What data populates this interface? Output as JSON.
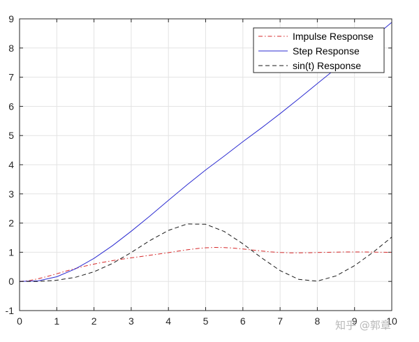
{
  "chart_data": {
    "type": "line",
    "xlim": [
      0,
      10
    ],
    "ylim": [
      -1,
      9
    ],
    "x_ticks": [
      "0",
      "1",
      "2",
      "3",
      "4",
      "5",
      "6",
      "7",
      "8",
      "9",
      "10"
    ],
    "y_ticks": [
      "-1",
      "0",
      "1",
      "2",
      "3",
      "4",
      "5",
      "6",
      "7",
      "8",
      "9"
    ],
    "grid": true,
    "legend_position": "top-right",
    "series": [
      {
        "name": "Impulse Response",
        "color": "#d62728",
        "style": "dash-dot",
        "x": [
          0,
          0.25,
          0.5,
          0.75,
          1,
          1.25,
          1.5,
          1.75,
          2,
          2.25,
          2.5,
          2.75,
          3,
          3.25,
          3.5,
          3.75,
          4,
          4.25,
          4.5,
          4.75,
          5,
          5.25,
          5.5,
          5.75,
          6,
          6.25,
          6.5,
          6.75,
          7,
          7.25,
          7.5,
          7.75,
          8,
          8.25,
          8.5,
          8.75,
          9,
          9.25,
          9.5,
          9.75,
          10
        ],
        "y": [
          0,
          0.026,
          0.09,
          0.173,
          0.264,
          0.355,
          0.442,
          0.523,
          0.594,
          0.657,
          0.713,
          0.762,
          0.808,
          0.851,
          0.894,
          0.939,
          0.986,
          1.036,
          1.083,
          1.124,
          1.152,
          1.165,
          1.161,
          1.142,
          1.113,
          1.078,
          1.043,
          1.013,
          0.993,
          0.982,
          0.98,
          0.983,
          0.99,
          0.998,
          1.005,
          1.009,
          1.01,
          1.009,
          1.005,
          1.001,
          0.998
        ]
      },
      {
        "name": "Step Response",
        "color": "#2b2bd1",
        "style": "solid",
        "x": [
          0,
          0.5,
          1,
          1.5,
          2,
          2.5,
          3,
          3.5,
          4,
          4.5,
          5,
          5.5,
          6,
          6.5,
          7,
          7.5,
          8,
          8.5,
          9,
          9.5,
          10
        ],
        "y": [
          0,
          0.02,
          0.16,
          0.43,
          0.79,
          1.23,
          1.72,
          2.24,
          2.78,
          3.31,
          3.82,
          4.3,
          4.79,
          5.26,
          5.75,
          6.26,
          6.78,
          7.3,
          7.82,
          8.35,
          8.88
        ]
      },
      {
        "name": "sin(t) Response",
        "color": "#1a1a1a",
        "style": "dashed",
        "x": [
          0,
          0.5,
          1,
          1.5,
          2,
          2.5,
          3,
          3.5,
          4,
          4.5,
          5,
          5.5,
          6,
          6.5,
          7,
          7.5,
          8,
          8.5,
          9,
          9.5,
          10
        ],
        "y": [
          0,
          0.0,
          0.04,
          0.14,
          0.33,
          0.62,
          0.99,
          1.4,
          1.75,
          1.97,
          1.96,
          1.71,
          1.29,
          0.81,
          0.37,
          0.07,
          0.01,
          0.19,
          0.54,
          1.0,
          1.52
        ]
      }
    ]
  },
  "watermark": "知乎 @郭章"
}
